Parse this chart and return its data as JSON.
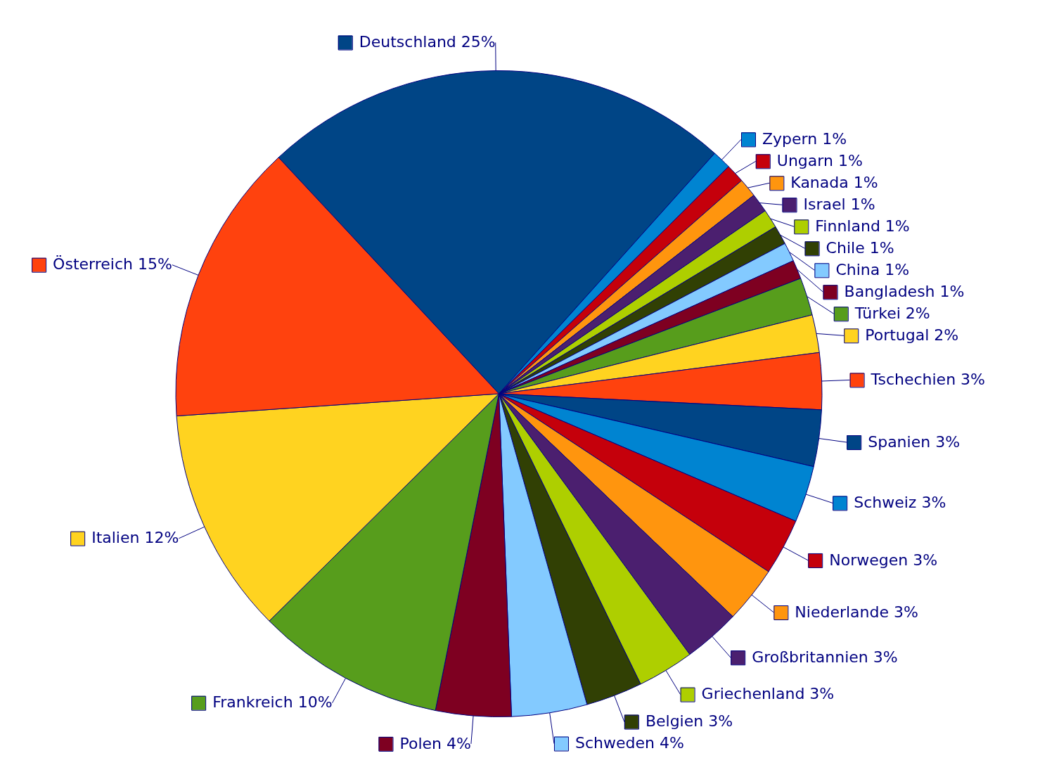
{
  "chart_data": {
    "type": "pie",
    "legend": "right",
    "categories": [
      "Deutschland",
      "Zypern",
      "Ungarn",
      "Kanada",
      "Israel",
      "Finnland",
      "Chile",
      "China",
      "Bangladesh",
      "Türkei",
      "Portugal",
      "Tschechien",
      "Spanien",
      "Schweiz",
      "Norwegen",
      "Niederlande",
      "Großbritannien",
      "Griechenland",
      "Belgien",
      "Schweden",
      "Polen",
      "Frankreich",
      "Italien",
      "Österreich"
    ],
    "values": [
      25,
      1,
      1,
      1,
      1,
      1,
      1,
      1,
      1,
      2,
      2,
      3,
      3,
      3,
      3,
      3,
      3,
      3,
      3,
      4,
      4,
      10,
      12,
      15
    ],
    "value_labels": [
      "25%",
      "1%",
      "1%",
      "1%",
      "1%",
      "1%",
      "1%",
      "1%",
      "1%",
      "2%",
      "2%",
      "3%",
      "3%",
      "3%",
      "3%",
      "3%",
      "3%",
      "3%",
      "3%",
      "4%",
      "4%",
      "10%",
      "12%",
      "15%"
    ],
    "colors": [
      "#004586",
      "#0084d1",
      "#c5000b",
      "#ff950e",
      "#4b1f6f",
      "#aecf00",
      "#314004",
      "#83caff",
      "#7e0021",
      "#579d1c",
      "#ffd320",
      "#ff420e",
      "#004586",
      "#0084d1",
      "#c5000b",
      "#ff950e",
      "#4b1f6f",
      "#aecf00",
      "#314004",
      "#83caff",
      "#7e0021",
      "#579d1c",
      "#ffd320",
      "#ff420e"
    ]
  }
}
